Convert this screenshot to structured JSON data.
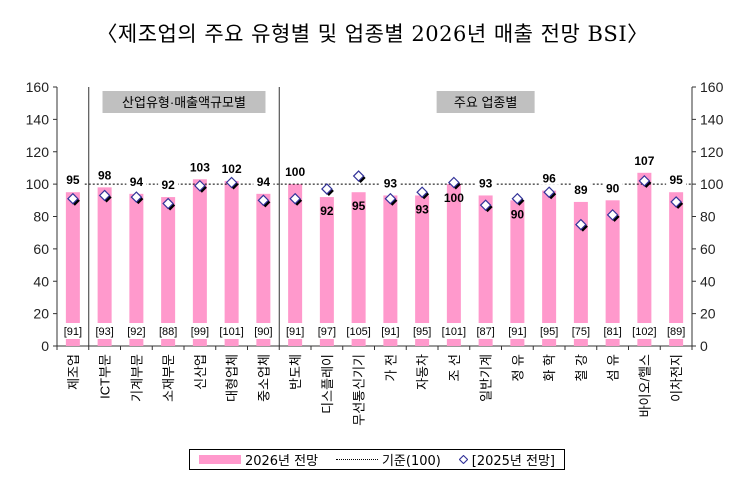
{
  "title": "〈제조업의 주요 유형별 및 업종별 2026년 매출 전망 BSI〉",
  "colors": {
    "bar": "#ff99cc",
    "marker_fill": "#ffffff",
    "marker_edge": "#333399",
    "section_box": "#c0c0c0"
  },
  "chart_data": {
    "type": "bar",
    "categories": [
      "제조업",
      "ICT부문",
      "기계부문",
      "소재부문",
      "신산업",
      "대형업체",
      "중소업체",
      "반도체",
      "디스플레이",
      "무선통신기기",
      "가 전",
      "자동차",
      "조 선",
      "일반기계",
      "정 유",
      "화 학",
      "철 강",
      "섬 유",
      "바이오/헬스",
      "이차전지"
    ],
    "series": [
      {
        "name": "2026년 전망",
        "kind": "bar",
        "values": [
          95,
          98,
          94,
          92,
          103,
          102,
          94,
          100,
          92,
          95,
          93,
          93,
          100,
          93,
          90,
          96,
          89,
          90,
          107,
          95
        ]
      },
      {
        "name": "[2025년 전망]",
        "kind": "marker",
        "values": [
          91,
          93,
          92,
          88,
          99,
          101,
          90,
          91,
          97,
          105,
          91,
          95,
          101,
          87,
          91,
          95,
          75,
          81,
          102,
          89
        ]
      }
    ],
    "reference": {
      "name": "기준(100)",
      "value": 100
    },
    "sections": [
      {
        "label": "산업유형·매출액규모별",
        "from": 1,
        "to": 6
      },
      {
        "label": "주요 업종별",
        "from": 7,
        "to": 19
      }
    ],
    "ylim": [
      0,
      160
    ],
    "yticks": [
      0,
      20,
      40,
      60,
      80,
      100,
      120,
      140,
      160
    ],
    "legend_position": "bottom"
  }
}
